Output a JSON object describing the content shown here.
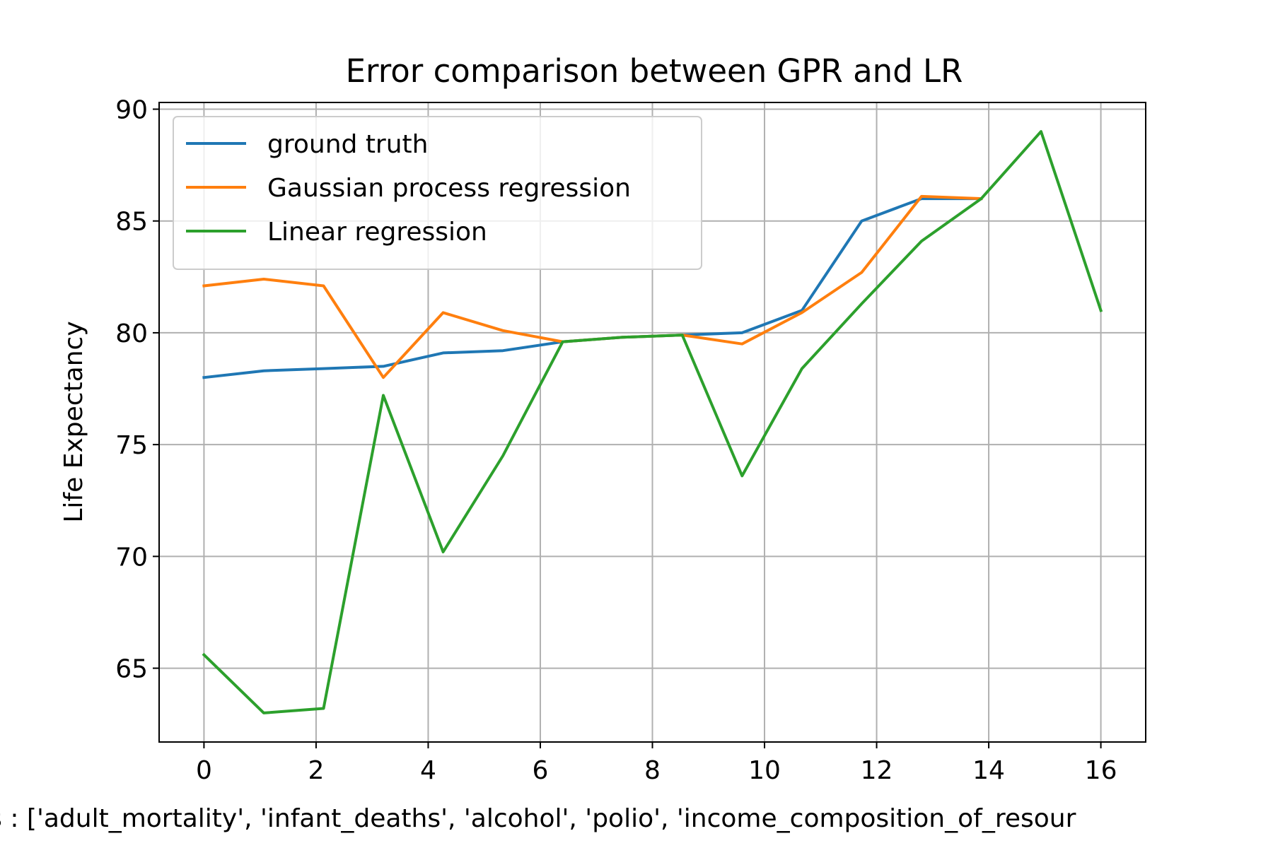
{
  "chart_data": {
    "type": "line",
    "title": "Error comparison between GPR and LR",
    "xlabel": "res : ['adult_mortality', 'infant_deaths', 'alcohol', 'polio', 'income_composition_of_resour",
    "ylabel": "Life Expectancy",
    "xlim": [
      -0.8,
      16.8
    ],
    "ylim": [
      61.7,
      90.3
    ],
    "xticks": [
      0,
      2,
      4,
      6,
      8,
      10,
      12,
      14,
      16
    ],
    "yticks": [
      65,
      70,
      75,
      80,
      85,
      90
    ],
    "grid": true,
    "legend_position": "top-left",
    "series": [
      {
        "name": "ground truth",
        "color": "#1f77b4",
        "x": [
          0,
          1.067,
          2.133,
          3.2,
          4.267,
          5.333,
          6.4,
          7.467,
          8.533,
          9.6,
          10.667,
          11.733,
          12.8,
          13.867
        ],
        "y": [
          78.0,
          78.3,
          78.4,
          78.5,
          79.1,
          79.2,
          79.6,
          79.8,
          79.9,
          80.0,
          81.0,
          85.0,
          86.0,
          86.0
        ]
      },
      {
        "name": "Gaussian process regression",
        "color": "#ff7f0e",
        "x": [
          0,
          1.067,
          2.133,
          3.2,
          4.267,
          5.333,
          6.4,
          7.467,
          8.533,
          9.6,
          10.667,
          11.733,
          12.8,
          13.867
        ],
        "y": [
          82.1,
          82.4,
          82.1,
          78.0,
          80.9,
          80.1,
          79.6,
          79.8,
          79.9,
          79.5,
          80.9,
          82.7,
          86.1,
          86.0
        ]
      },
      {
        "name": "Linear regression",
        "color": "#2ca02c",
        "x": [
          0,
          1.067,
          2.133,
          3.2,
          4.267,
          5.333,
          6.4,
          7.467,
          8.533,
          9.6,
          10.667,
          11.733,
          12.8,
          13.867,
          14.933,
          16.0
        ],
        "y": [
          65.6,
          63.0,
          63.2,
          77.2,
          70.2,
          74.5,
          79.6,
          79.8,
          79.9,
          73.6,
          78.4,
          81.3,
          84.1,
          86.0,
          89.0,
          81.0
        ]
      }
    ]
  }
}
